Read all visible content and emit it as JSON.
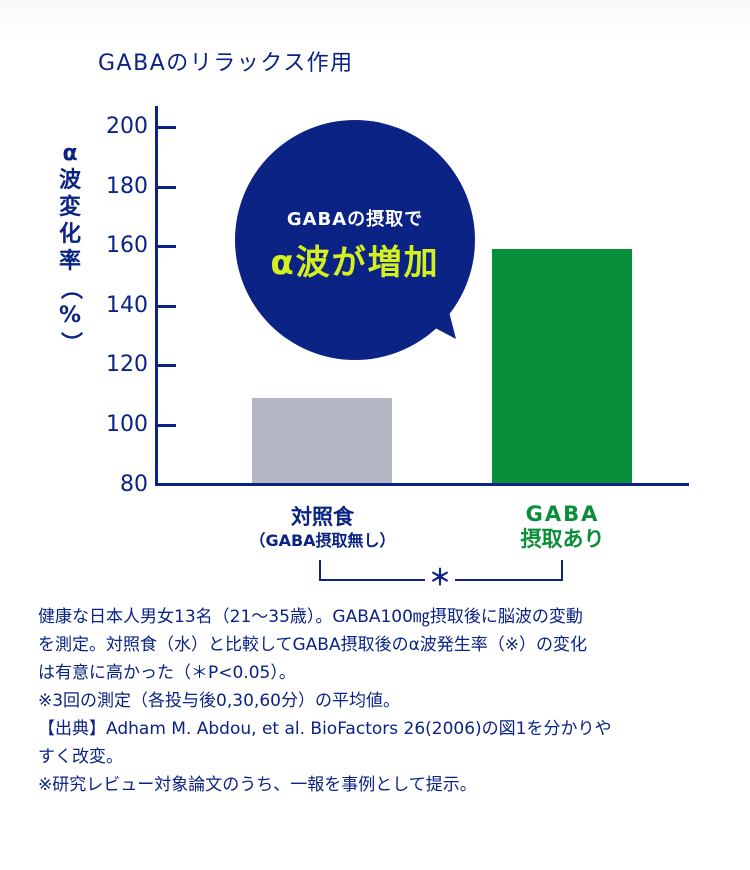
{
  "chart_data": {
    "type": "bar",
    "title": "GABAのリラックス作用",
    "xlabel": "",
    "ylabel": "α波変化率（%）",
    "ylim": [
      80,
      200
    ],
    "yticks": [
      80,
      100,
      120,
      140,
      160,
      180,
      200
    ],
    "grid": false,
    "categories": [
      "対照食（GABA摂取無し）",
      "GABA摂取あり"
    ],
    "values": [
      109,
      159
    ],
    "colors": [
      "#b2b6c3",
      "#078f3b"
    ],
    "annotations": [
      {
        "text": "GABAの摂取で α波が増加",
        "type": "speech-bubble"
      },
      {
        "text": "＊",
        "type": "significance-bracket",
        "between": [
          0,
          1
        ]
      }
    ]
  },
  "title": "GABAのリラックス作用",
  "y_axis": {
    "label_chars": [
      "α",
      "波",
      "変",
      "化",
      "率",
      "（",
      "%",
      "）"
    ],
    "ticks": [
      "200",
      "180",
      "160",
      "140",
      "120",
      "100",
      "80"
    ]
  },
  "bubble": {
    "line1": "GABAの摂取で",
    "line2": "α波が増加"
  },
  "categories": {
    "control": {
      "line1": "対照食",
      "line2": "（GABA摂取無し）"
    },
    "gaba": {
      "line1": "GABA",
      "line2": "摂取あり"
    }
  },
  "significance": "＊",
  "notes": [
    "健康な日本人男女13名（21〜35歳）。GABA100㎎摂取後に脳波の変動",
    "を測定。対照食（水）と比較してGABA摂取後のα波発生率（※）の変化",
    "は有意に高かった（＊P<0.05）。",
    "※3回の測定（各投与後0,30,60分）の平均値。",
    "【出典】Adham M. Abdou, et al. BioFactors 26(2006)の図1を分かりや",
    "すく改変。",
    "※研究レビュー対象論文のうち、一報を事例として提示。"
  ]
}
